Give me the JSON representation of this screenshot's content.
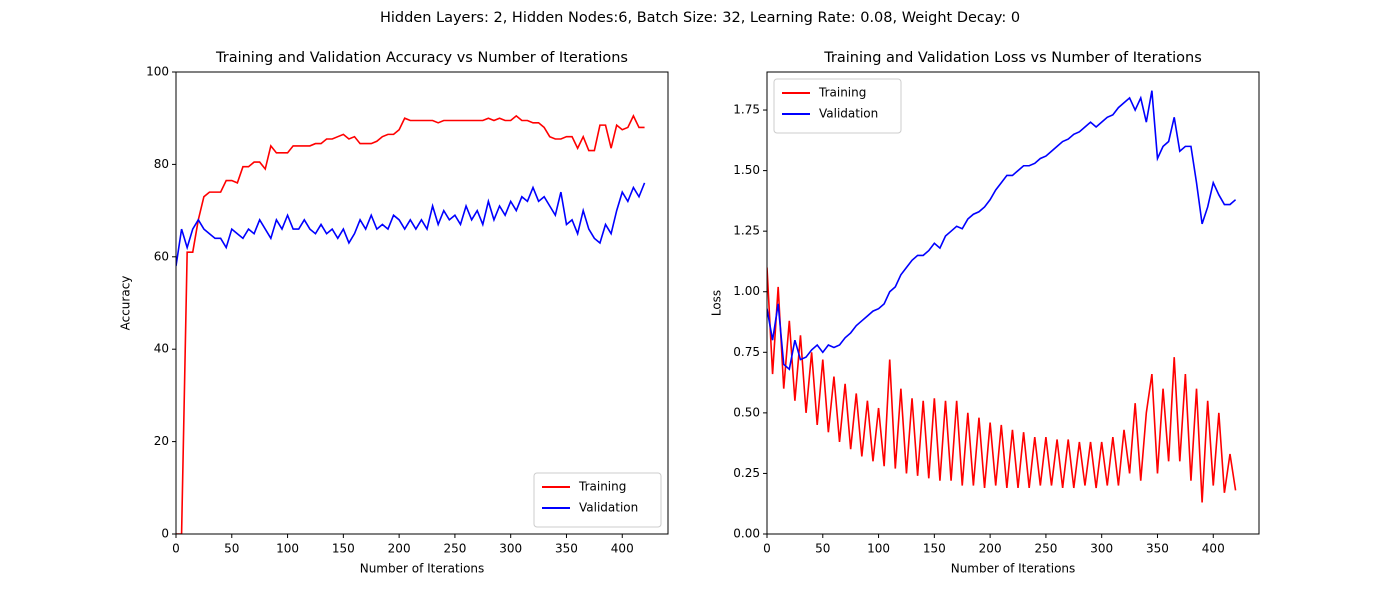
{
  "title": "Hidden Layers: 2, Hidden Nodes:6, Batch Size: 32, Learning Rate: 0.08, Weight Decay: 0",
  "chart_data": [
    {
      "type": "line",
      "title": "Training and Validation Accuracy vs Number of Iterations",
      "x_label": "Number of Iterations",
      "y_label": "Accuracy",
      "x": [
        0,
        5,
        10,
        15,
        20,
        25,
        30,
        35,
        40,
        45,
        50,
        55,
        60,
        65,
        70,
        75,
        80,
        85,
        90,
        95,
        100,
        105,
        110,
        115,
        120,
        125,
        130,
        135,
        140,
        145,
        150,
        155,
        160,
        165,
        170,
        175,
        180,
        185,
        190,
        195,
        200,
        205,
        210,
        215,
        220,
        225,
        230,
        235,
        240,
        245,
        250,
        255,
        260,
        265,
        270,
        275,
        280,
        285,
        290,
        295,
        300,
        305,
        310,
        315,
        320,
        325,
        330,
        335,
        340,
        345,
        350,
        355,
        360,
        365,
        370,
        375,
        380,
        385,
        390,
        395,
        400,
        405,
        410,
        415,
        420
      ],
      "series": [
        {
          "name": "Training",
          "color": "#ff0000",
          "values": [
            0,
            0,
            61,
            61,
            68,
            73,
            74,
            74,
            74,
            76.5,
            76.5,
            76,
            79.5,
            79.5,
            80.5,
            80.5,
            79,
            84,
            82.5,
            82.5,
            82.5,
            84,
            84,
            84,
            84,
            84.5,
            84.5,
            85.5,
            85.5,
            86,
            86.5,
            85.5,
            86,
            84.5,
            84.5,
            84.5,
            85,
            86,
            86.5,
            86.5,
            87.5,
            90,
            89.5,
            89.5,
            89.5,
            89.5,
            89.5,
            89,
            89.5,
            89.5,
            89.5,
            89.5,
            89.5,
            89.5,
            89.5,
            89.5,
            90,
            89.5,
            90,
            89.5,
            89.5,
            90.5,
            89.5,
            89.5,
            89,
            89,
            88,
            86,
            85.5,
            85.5,
            86,
            86,
            83.5,
            86,
            83,
            83,
            88.5,
            88.5,
            83.5,
            88.5,
            87.5,
            88,
            90.5,
            88,
            88
          ]
        },
        {
          "name": "Validation",
          "color": "#0000ff",
          "values": [
            58,
            66,
            62,
            66,
            68,
            66,
            65,
            64,
            64,
            62,
            66,
            65,
            64,
            66,
            65,
            68,
            66,
            64,
            68,
            66,
            69,
            66,
            66,
            68,
            66,
            65,
            67,
            65,
            66,
            64,
            66,
            63,
            65,
            68,
            66,
            69,
            66,
            67,
            66,
            69,
            68,
            66,
            68,
            66,
            68,
            66,
            71,
            67,
            70,
            68,
            69,
            67,
            71,
            68,
            70,
            67,
            72,
            68,
            71,
            69,
            72,
            70,
            73,
            72,
            75,
            72,
            73,
            71,
            69,
            74,
            67,
            68,
            65,
            70,
            66,
            64,
            63,
            67,
            65,
            70,
            74,
            72,
            75,
            73,
            76
          ]
        }
      ],
      "xlim": [
        0,
        441
      ],
      "xticks": [
        0,
        50,
        100,
        150,
        200,
        250,
        300,
        350,
        400
      ],
      "ylim": [
        0,
        100
      ],
      "yticks": [
        0,
        20,
        40,
        60,
        80,
        100
      ],
      "legend": "lower right"
    },
    {
      "type": "line",
      "title": "Training and Validation Loss vs Number of Iterations",
      "x_label": "Number of Iterations",
      "y_label": "Loss",
      "x": [
        0,
        5,
        10,
        15,
        20,
        25,
        30,
        35,
        40,
        45,
        50,
        55,
        60,
        65,
        70,
        75,
        80,
        85,
        90,
        95,
        100,
        105,
        110,
        115,
        120,
        125,
        130,
        135,
        140,
        145,
        150,
        155,
        160,
        165,
        170,
        175,
        180,
        185,
        190,
        195,
        200,
        205,
        210,
        215,
        220,
        225,
        230,
        235,
        240,
        245,
        250,
        255,
        260,
        265,
        270,
        275,
        280,
        285,
        290,
        295,
        300,
        305,
        310,
        315,
        320,
        325,
        330,
        335,
        340,
        345,
        350,
        355,
        360,
        365,
        370,
        375,
        380,
        385,
        390,
        395,
        400,
        405,
        410,
        415,
        420
      ],
      "series": [
        {
          "name": "Training",
          "color": "#ff0000",
          "values": [
            1.1,
            0.66,
            1.02,
            0.6,
            0.88,
            0.55,
            0.82,
            0.5,
            0.75,
            0.45,
            0.72,
            0.42,
            0.65,
            0.38,
            0.62,
            0.35,
            0.58,
            0.32,
            0.55,
            0.3,
            0.52,
            0.28,
            0.72,
            0.27,
            0.6,
            0.25,
            0.56,
            0.24,
            0.55,
            0.23,
            0.56,
            0.22,
            0.55,
            0.22,
            0.55,
            0.2,
            0.5,
            0.2,
            0.48,
            0.19,
            0.46,
            0.2,
            0.45,
            0.19,
            0.43,
            0.19,
            0.42,
            0.19,
            0.4,
            0.2,
            0.4,
            0.2,
            0.39,
            0.19,
            0.39,
            0.19,
            0.38,
            0.2,
            0.38,
            0.19,
            0.38,
            0.2,
            0.4,
            0.2,
            0.43,
            0.25,
            0.54,
            0.22,
            0.5,
            0.66,
            0.25,
            0.6,
            0.3,
            0.73,
            0.3,
            0.66,
            0.22,
            0.6,
            0.13,
            0.55,
            0.2,
            0.5,
            0.17,
            0.33,
            0.18
          ]
        },
        {
          "name": "Validation",
          "color": "#0000ff",
          "values": [
            0.93,
            0.8,
            0.95,
            0.7,
            0.68,
            0.8,
            0.72,
            0.73,
            0.76,
            0.78,
            0.75,
            0.78,
            0.77,
            0.78,
            0.81,
            0.83,
            0.86,
            0.88,
            0.9,
            0.92,
            0.93,
            0.95,
            1.0,
            1.02,
            1.07,
            1.1,
            1.13,
            1.15,
            1.15,
            1.17,
            1.2,
            1.18,
            1.23,
            1.25,
            1.27,
            1.26,
            1.3,
            1.32,
            1.33,
            1.35,
            1.38,
            1.42,
            1.45,
            1.48,
            1.48,
            1.5,
            1.52,
            1.52,
            1.53,
            1.55,
            1.56,
            1.58,
            1.6,
            1.62,
            1.63,
            1.65,
            1.66,
            1.68,
            1.7,
            1.68,
            1.7,
            1.72,
            1.73,
            1.76,
            1.78,
            1.8,
            1.75,
            1.8,
            1.7,
            1.83,
            1.55,
            1.6,
            1.62,
            1.72,
            1.58,
            1.6,
            1.6,
            1.45,
            1.28,
            1.35,
            1.45,
            1.4,
            1.36,
            1.36,
            1.38
          ]
        }
      ],
      "xlim": [
        0,
        441
      ],
      "xticks": [
        0,
        50,
        100,
        150,
        200,
        250,
        300,
        350,
        400
      ],
      "ylim": [
        0,
        1.907
      ],
      "yticks": [
        {
          "value": 0,
          "label": "0.00"
        },
        {
          "value": 0.25,
          "label": "0.25"
        },
        {
          "value": 0.5,
          "label": "0.50"
        },
        {
          "value": 0.75,
          "label": "0.75"
        },
        {
          "value": 1,
          "label": "1.00"
        },
        {
          "value": 1.25,
          "label": "1.25"
        },
        {
          "value": 1.5,
          "label": "1.50"
        },
        {
          "value": 1.75,
          "label": "1.75"
        }
      ],
      "legend": "upper left"
    }
  ]
}
